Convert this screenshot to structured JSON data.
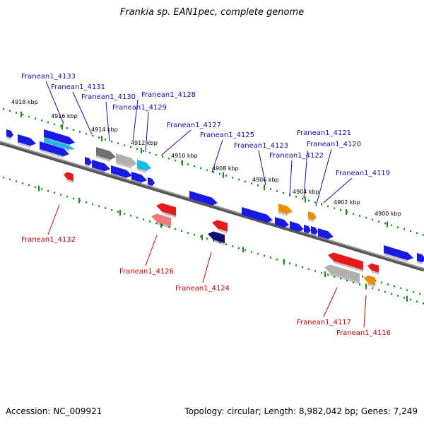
{
  "title": "Frankia sp. EAN1pec, complete genome",
  "footer": {
    "accession": "Accession: NC_009921",
    "summary": "Topology: circular; Length: 8,982,042 bp; Genes: 7,249"
  },
  "colors": {
    "backbone": "#7a7a7a",
    "tick": "#1a8a1a",
    "label_top": "#1010a8",
    "label_bottom": "#c00000",
    "blue": "#1a1ae6",
    "red": "#e61a1a",
    "orange": "#f08a00",
    "cyan": "#1ab8e6",
    "gray": "#b0b0b0",
    "darkgray": "#707070",
    "navy": "#10106e",
    "pink": "#f07a7a"
  },
  "kbp_labels": [
    "4918 kbp",
    "4916 kbp",
    "4914 kbp",
    "4912 kbp",
    "4910 kbp",
    "4908 kbp",
    "4906 kbp",
    "4904 kbp",
    "4902 kbp",
    "4900 kbp"
  ],
  "top_genes": [
    "Franean1_4133",
    "Franean1_4131",
    "Franean1_4130",
    "Franean1_4128",
    "Franean1_4129",
    "Franean1_4127",
    "Franean1_4125",
    "Franean1_4123",
    "Franean1_4121",
    "Franean1_4122",
    "Franean1_4120",
    "Franean1_4119"
  ],
  "bottom_genes": [
    "Franean1_4132",
    "Franean1_4126",
    "Franean1_4124",
    "Franean1_4117",
    "Franean1_4116"
  ]
}
